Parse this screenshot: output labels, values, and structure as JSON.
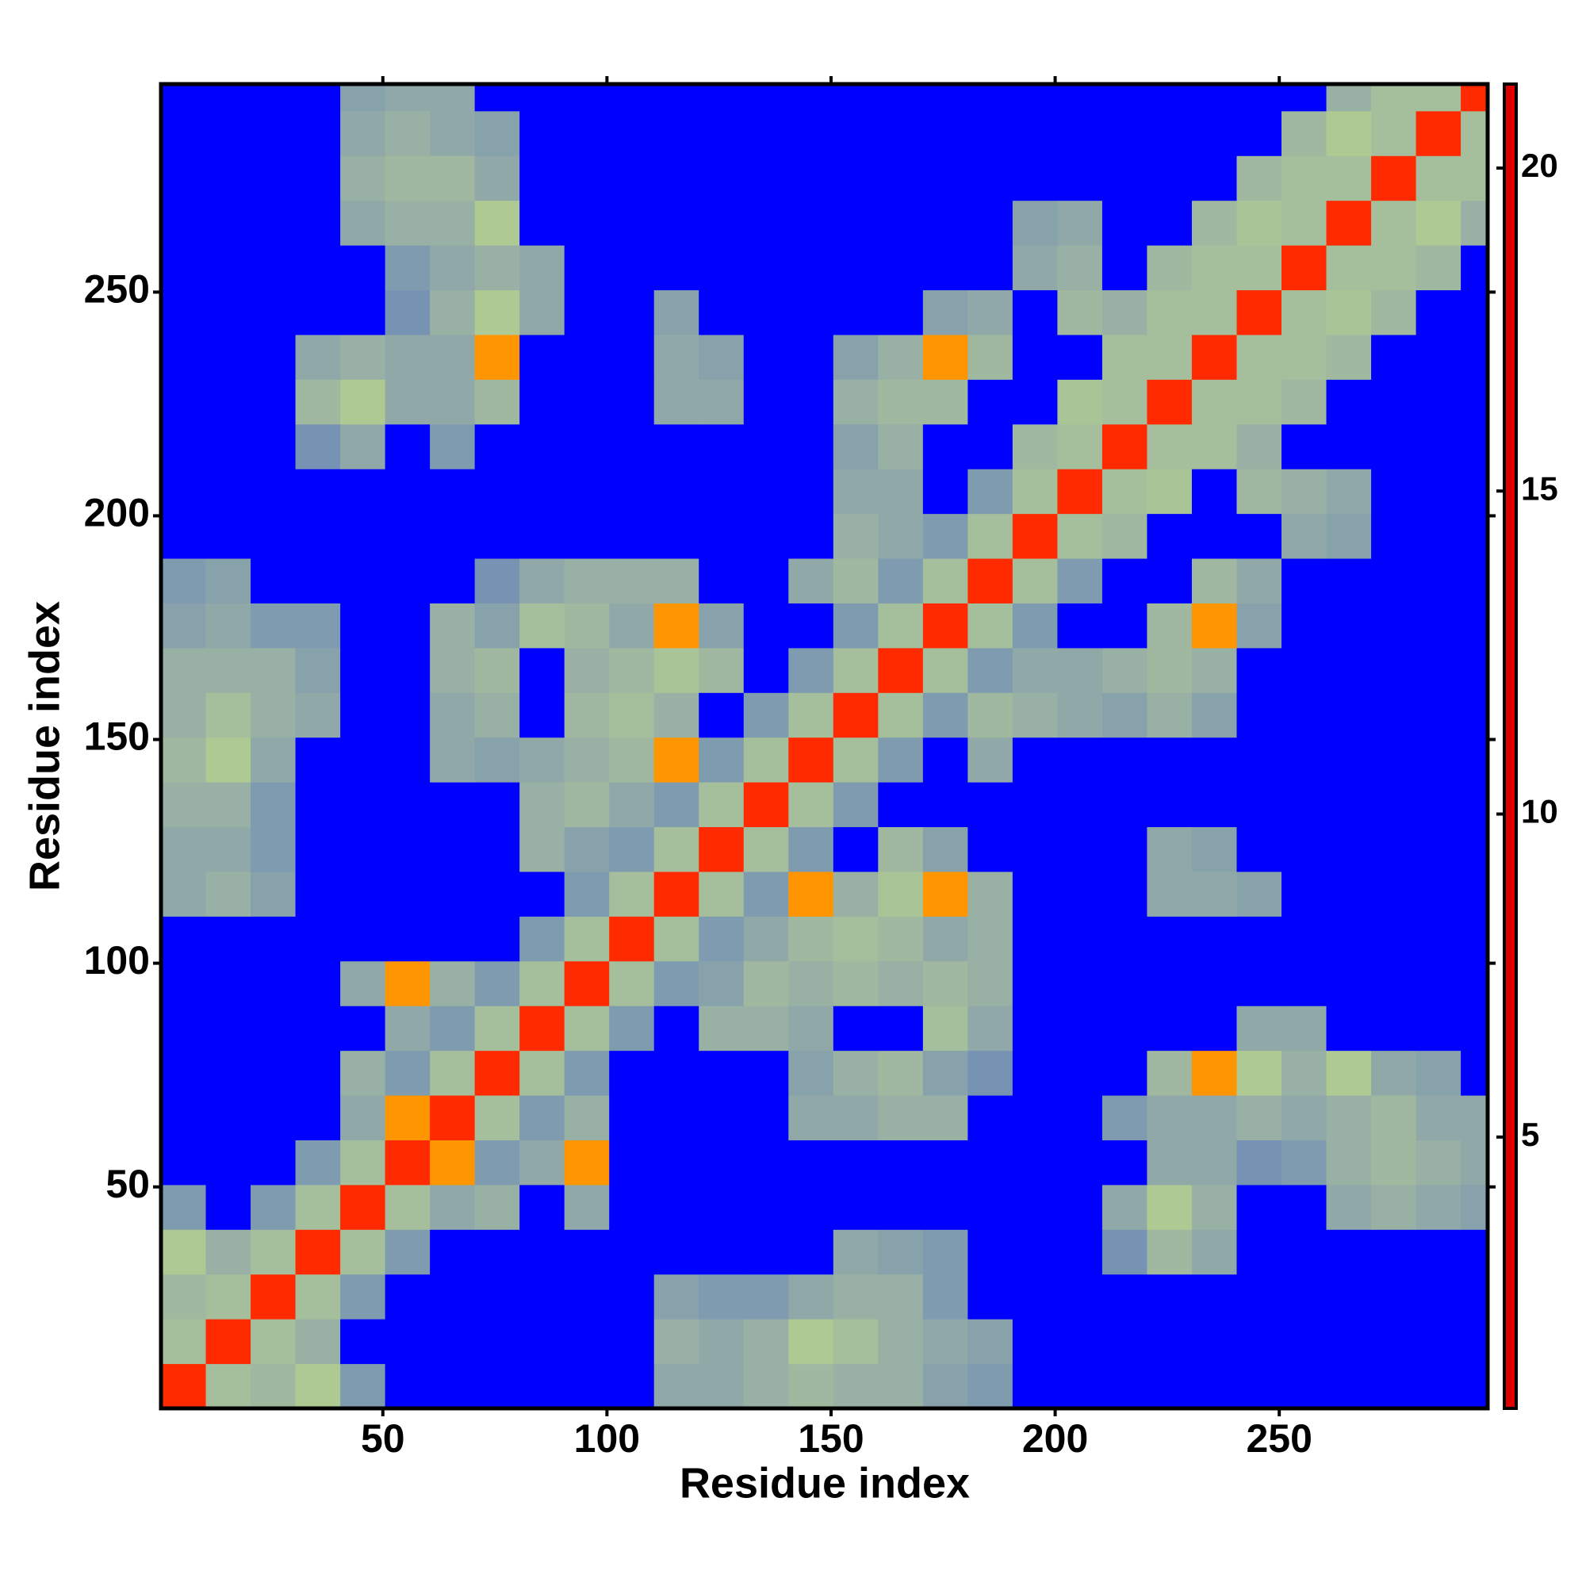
{
  "chart_data": {
    "type": "heatmap",
    "xlabel": "Residue index",
    "ylabel": "Residue index",
    "xlim": [
      0.5,
      296.5
    ],
    "ylim": [
      0.5,
      296.5
    ],
    "xticks": [
      50,
      100,
      150,
      200,
      250
    ],
    "yticks": [
      50,
      100,
      150,
      200,
      250
    ],
    "x_edges": [
      0.5,
      10.5,
      20.5,
      30.5,
      40.5,
      50.5,
      60.5,
      70.5,
      80.5,
      90.5,
      100.5,
      110.5,
      120.5,
      130.5,
      140.5,
      150.5,
      160.5,
      170.5,
      180.5,
      190.5,
      200.5,
      210.5,
      220.5,
      230.5,
      240.5,
      250.5,
      260.5,
      270.5,
      280.5,
      290.5,
      296.5
    ],
    "y_edges": [
      0.5,
      10.5,
      20.5,
      30.5,
      40.5,
      50.5,
      60.5,
      70.5,
      80.5,
      90.5,
      100.5,
      110.5,
      120.5,
      130.5,
      140.5,
      150.5,
      160.5,
      170.5,
      180.5,
      190.5,
      200.5,
      210.5,
      220.5,
      230.5,
      240.5,
      250.5,
      260.5,
      270.5,
      280.5,
      290.5,
      296.5
    ],
    "z": [
      [
        4,
        11,
        12,
        9,
        16,
        21,
        21,
        21,
        21,
        21,
        21,
        14,
        14,
        13,
        12,
        13,
        13,
        15,
        16,
        21,
        21,
        21,
        21,
        21,
        21,
        21,
        21,
        21,
        21,
        21
      ],
      [
        11,
        4,
        11,
        13,
        21,
        21,
        21,
        21,
        21,
        21,
        21,
        13,
        14,
        13,
        9,
        11,
        13,
        14,
        15,
        21,
        21,
        21,
        21,
        21,
        21,
        21,
        21,
        21,
        21,
        21
      ],
      [
        12,
        11,
        4,
        11,
        16,
        21,
        21,
        21,
        21,
        21,
        21,
        15,
        16,
        16,
        14,
        13,
        13,
        16,
        21,
        21,
        21,
        21,
        21,
        21,
        21,
        21,
        21,
        21,
        21,
        21
      ],
      [
        9,
        13,
        11,
        4,
        11,
        16,
        21,
        21,
        21,
        21,
        21,
        21,
        21,
        21,
        21,
        14,
        15,
        16,
        21,
        21,
        21,
        17,
        12,
        14,
        21,
        21,
        21,
        21,
        21,
        21
      ],
      [
        16,
        21,
        16,
        11,
        4,
        11,
        14,
        13,
        21,
        14,
        21,
        21,
        21,
        21,
        21,
        21,
        21,
        21,
        21,
        21,
        21,
        14,
        9,
        13,
        21,
        21,
        14,
        13,
        14,
        15
      ],
      [
        21,
        21,
        21,
        16,
        11,
        4,
        8,
        16,
        14,
        8,
        21,
        21,
        21,
        21,
        21,
        21,
        21,
        21,
        21,
        21,
        21,
        21,
        14,
        14,
        17,
        16,
        13,
        12,
        13,
        14
      ],
      [
        21,
        21,
        21,
        21,
        14,
        8,
        4,
        11,
        16,
        13,
        21,
        21,
        21,
        21,
        14,
        14,
        13,
        13,
        21,
        21,
        21,
        16,
        14,
        14,
        13,
        14,
        13,
        12,
        14,
        14
      ],
      [
        21,
        21,
        21,
        21,
        13,
        16,
        11,
        4,
        11,
        16,
        21,
        21,
        21,
        21,
        15,
        13,
        12,
        15,
        17,
        21,
        21,
        21,
        12,
        8,
        9,
        13,
        9,
        14,
        15,
        21
      ],
      [
        21,
        21,
        21,
        21,
        21,
        14,
        16,
        11,
        4,
        11,
        16,
        21,
        13,
        13,
        14,
        21,
        21,
        11,
        14,
        21,
        21,
        21,
        21,
        21,
        14,
        14,
        21,
        21,
        21,
        21
      ],
      [
        21,
        21,
        21,
        21,
        14,
        8,
        13,
        16,
        11,
        4,
        11,
        16,
        15,
        12,
        13,
        12,
        13,
        12,
        13,
        21,
        21,
        21,
        21,
        21,
        21,
        21,
        21,
        21,
        21,
        21
      ],
      [
        21,
        21,
        21,
        21,
        21,
        21,
        21,
        21,
        16,
        11,
        4,
        11,
        16,
        14,
        12,
        11,
        12,
        14,
        13,
        21,
        21,
        21,
        21,
        21,
        21,
        21,
        21,
        21,
        21,
        21
      ],
      [
        14,
        13,
        15,
        21,
        21,
        21,
        21,
        21,
        21,
        16,
        11,
        4,
        11,
        16,
        8,
        13,
        10,
        8,
        13,
        21,
        21,
        21,
        14,
        14,
        15,
        21,
        21,
        21,
        21,
        21
      ],
      [
        14,
        14,
        16,
        21,
        21,
        21,
        21,
        21,
        13,
        15,
        16,
        11,
        4,
        11,
        16,
        21,
        12,
        15,
        21,
        21,
        21,
        21,
        14,
        15,
        21,
        21,
        21,
        21,
        21,
        21
      ],
      [
        13,
        13,
        16,
        21,
        21,
        21,
        21,
        21,
        13,
        12,
        14,
        16,
        11,
        4,
        11,
        16,
        21,
        21,
        21,
        21,
        21,
        21,
        21,
        21,
        21,
        21,
        21,
        21,
        21,
        21
      ],
      [
        12,
        9,
        14,
        21,
        21,
        21,
        14,
        15,
        14,
        13,
        12,
        8,
        16,
        11,
        4,
        11,
        16,
        21,
        14,
        21,
        21,
        21,
        21,
        21,
        21,
        21,
        21,
        21,
        21,
        21
      ],
      [
        13,
        11,
        13,
        14,
        21,
        21,
        14,
        13,
        21,
        12,
        11,
        13,
        21,
        16,
        11,
        4,
        11,
        16,
        12,
        13,
        14,
        15,
        13,
        15,
        21,
        21,
        21,
        21,
        21,
        21
      ],
      [
        13,
        13,
        13,
        15,
        21,
        21,
        13,
        12,
        21,
        13,
        12,
        10,
        12,
        21,
        16,
        11,
        4,
        11,
        16,
        14,
        14,
        13,
        12,
        13,
        21,
        21,
        21,
        21,
        21,
        21
      ],
      [
        15,
        14,
        16,
        16,
        21,
        21,
        13,
        15,
        11,
        12,
        14,
        8,
        15,
        21,
        21,
        16,
        11,
        4,
        11,
        16,
        21,
        21,
        12,
        8,
        15,
        21,
        21,
        21,
        21,
        21
      ],
      [
        16,
        15,
        21,
        21,
        21,
        21,
        21,
        17,
        14,
        13,
        13,
        13,
        21,
        21,
        14,
        12,
        16,
        11,
        4,
        11,
        16,
        21,
        21,
        12,
        14,
        21,
        21,
        21,
        21,
        21
      ],
      [
        21,
        21,
        21,
        21,
        21,
        21,
        21,
        21,
        21,
        21,
        21,
        21,
        21,
        21,
        21,
        13,
        14,
        16,
        11,
        4,
        11,
        12,
        21,
        21,
        21,
        14,
        15,
        21,
        21,
        21
      ],
      [
        21,
        21,
        21,
        21,
        21,
        21,
        21,
        21,
        21,
        21,
        21,
        21,
        21,
        21,
        21,
        14,
        14,
        21,
        16,
        11,
        4,
        11,
        10,
        21,
        12,
        13,
        14,
        21,
        21,
        21
      ],
      [
        21,
        21,
        21,
        17,
        14,
        21,
        16,
        21,
        21,
        21,
        21,
        21,
        21,
        21,
        21,
        15,
        13,
        21,
        21,
        12,
        11,
        4,
        11,
        11,
        13,
        21,
        21,
        21,
        21,
        21
      ],
      [
        21,
        21,
        21,
        12,
        9,
        14,
        14,
        12,
        21,
        21,
        21,
        14,
        14,
        21,
        21,
        13,
        12,
        12,
        21,
        21,
        10,
        11,
        4,
        11,
        11,
        12,
        21,
        21,
        21,
        21
      ],
      [
        21,
        21,
        21,
        14,
        13,
        14,
        14,
        8,
        21,
        21,
        21,
        14,
        15,
        21,
        21,
        15,
        13,
        8,
        12,
        21,
        21,
        11,
        11,
        4,
        11,
        11,
        12,
        21,
        21,
        21
      ],
      [
        21,
        21,
        21,
        21,
        21,
        17,
        13,
        9,
        14,
        21,
        21,
        15,
        21,
        21,
        21,
        21,
        21,
        15,
        14,
        21,
        12,
        13,
        11,
        11,
        4,
        11,
        10,
        12,
        21,
        21
      ],
      [
        21,
        21,
        21,
        21,
        21,
        16,
        14,
        13,
        14,
        21,
        21,
        21,
        21,
        21,
        21,
        21,
        21,
        21,
        21,
        14,
        13,
        21,
        12,
        11,
        11,
        4,
        11,
        11,
        12,
        21
      ],
      [
        21,
        21,
        21,
        21,
        14,
        13,
        13,
        9,
        21,
        21,
        21,
        21,
        21,
        21,
        21,
        21,
        21,
        21,
        21,
        15,
        14,
        21,
        21,
        12,
        10,
        11,
        4,
        11,
        9,
        13
      ],
      [
        21,
        21,
        21,
        21,
        13,
        12,
        12,
        14,
        21,
        21,
        21,
        21,
        21,
        21,
        21,
        21,
        21,
        21,
        21,
        21,
        21,
        21,
        21,
        21,
        12,
        11,
        11,
        4,
        11,
        11
      ],
      [
        21,
        21,
        21,
        21,
        14,
        13,
        14,
        15,
        21,
        21,
        21,
        21,
        21,
        21,
        21,
        21,
        21,
        21,
        21,
        21,
        21,
        21,
        21,
        21,
        21,
        12,
        9,
        11,
        4,
        11
      ],
      [
        21,
        21,
        21,
        21,
        15,
        14,
        14,
        21,
        21,
        21,
        21,
        21,
        21,
        21,
        21,
        21,
        21,
        21,
        21,
        21,
        21,
        21,
        21,
        21,
        21,
        21,
        13,
        11,
        11,
        4
      ]
    ],
    "colorbar": {
      "lim": [
        0.8,
        21.3
      ],
      "ticks": [
        5,
        10,
        15,
        20
      ],
      "colorscale": [
        [
          0.8,
          "#e00000"
        ],
        [
          4,
          "#ff2a00"
        ],
        [
          8.4,
          "#ffa000"
        ],
        [
          8.6,
          "#b0cc90"
        ],
        [
          12,
          "#a0b8a0"
        ],
        [
          18,
          "#6f8cb8"
        ],
        [
          20.5,
          "#0000ff"
        ],
        [
          21.3,
          "#0000ff"
        ]
      ]
    }
  }
}
